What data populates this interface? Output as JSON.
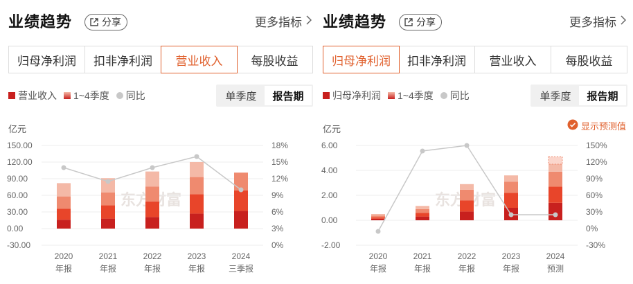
{
  "panels": [
    {
      "title": "业绩趋势",
      "share_label": "分享",
      "more_label": "更多指标",
      "tabs": [
        "归母净利润",
        "扣非净利润",
        "营业收入",
        "每股收益"
      ],
      "active_tab": 2,
      "legend": [
        "营业收入",
        "1~4季度",
        "同比"
      ],
      "toggle": [
        "单季度",
        "报告期"
      ],
      "toggle_active": 1,
      "unit": "亿元",
      "forecast_label": "",
      "watermark": "东方财富"
    },
    {
      "title": "业绩趋势",
      "share_label": "分享",
      "more_label": "更多指标",
      "tabs": [
        "归母净利润",
        "扣非净利润",
        "营业收入",
        "每股收益"
      ],
      "active_tab": 0,
      "legend": [
        "归母净利润",
        "1~4季度",
        "同比"
      ],
      "toggle": [
        "单季度",
        "报告期"
      ],
      "toggle_active": 1,
      "unit": "亿元",
      "forecast_label": "显示预测值",
      "watermark": "东方财富"
    }
  ],
  "colors": {
    "q1": "#c8201e",
    "q2": "#e8452a",
    "q3": "#ef8a6f",
    "q4": "#f4b9a7",
    "yoy": "#c8c8c8",
    "accent": "#e0602d"
  },
  "chart_data": [
    {
      "type": "bar",
      "stacked": true,
      "categories": [
        [
          "2020",
          "年报"
        ],
        [
          "2021",
          "年报"
        ],
        [
          "2022",
          "年报"
        ],
        [
          "2023",
          "年报"
        ],
        [
          "2024",
          "三季报"
        ]
      ],
      "series": [
        {
          "name": "1~4季度",
          "stack": [
            [
              16,
              20,
              22,
              24
            ],
            [
              18,
              24,
              23,
              26
            ],
            [
              21,
              28,
              27,
              27
            ],
            [
              27,
              35,
              31,
              27
            ],
            [
              32,
              37,
              32,
              0
            ]
          ]
        }
      ],
      "yoy": [
        14,
        11.5,
        14,
        16,
        10
      ],
      "y_left_ticks": [
        "150.00",
        "120.00",
        "90.00",
        "60.00",
        "30.00",
        "0.00",
        "-30.00"
      ],
      "y_left_range": [
        -30,
        150
      ],
      "y_right_ticks": [
        "18%",
        "15%",
        "12%",
        "9%",
        "6%",
        "3%",
        "0%"
      ],
      "y_right_range": [
        0,
        18
      ],
      "grid": true
    },
    {
      "type": "bar",
      "stacked": true,
      "categories": [
        [
          "2020",
          "年报"
        ],
        [
          "2021",
          "年报"
        ],
        [
          "2022",
          "年报"
        ],
        [
          "2023",
          "年报"
        ],
        [
          "2024",
          "预测"
        ]
      ],
      "series": [
        {
          "name": "1~4季度",
          "stack": [
            [
              0.12,
              0.12,
              0.14,
              0.12
            ],
            [
              0.3,
              0.3,
              0.3,
              0.25
            ],
            [
              0.7,
              0.9,
              0.85,
              0.45
            ],
            [
              1.0,
              1.2,
              0.9,
              0.5
            ],
            [
              1.4,
              1.3,
              1.2,
              0.6
            ]
          ]
        }
      ],
      "forecast_extra": [
        0,
        0,
        0,
        0,
        0.6
      ],
      "yoy": [
        -5,
        140,
        150,
        25,
        25
      ],
      "y_left_ticks": [
        "6.00",
        "4.00",
        "2.00",
        "0.00",
        "-2.00"
      ],
      "y_left_range": [
        -2,
        6
      ],
      "y_right_ticks": [
        "150%",
        "120%",
        "90%",
        "60%",
        "30%",
        "0%",
        "-30%"
      ],
      "y_right_range": [
        -30,
        150
      ],
      "grid": true
    }
  ]
}
